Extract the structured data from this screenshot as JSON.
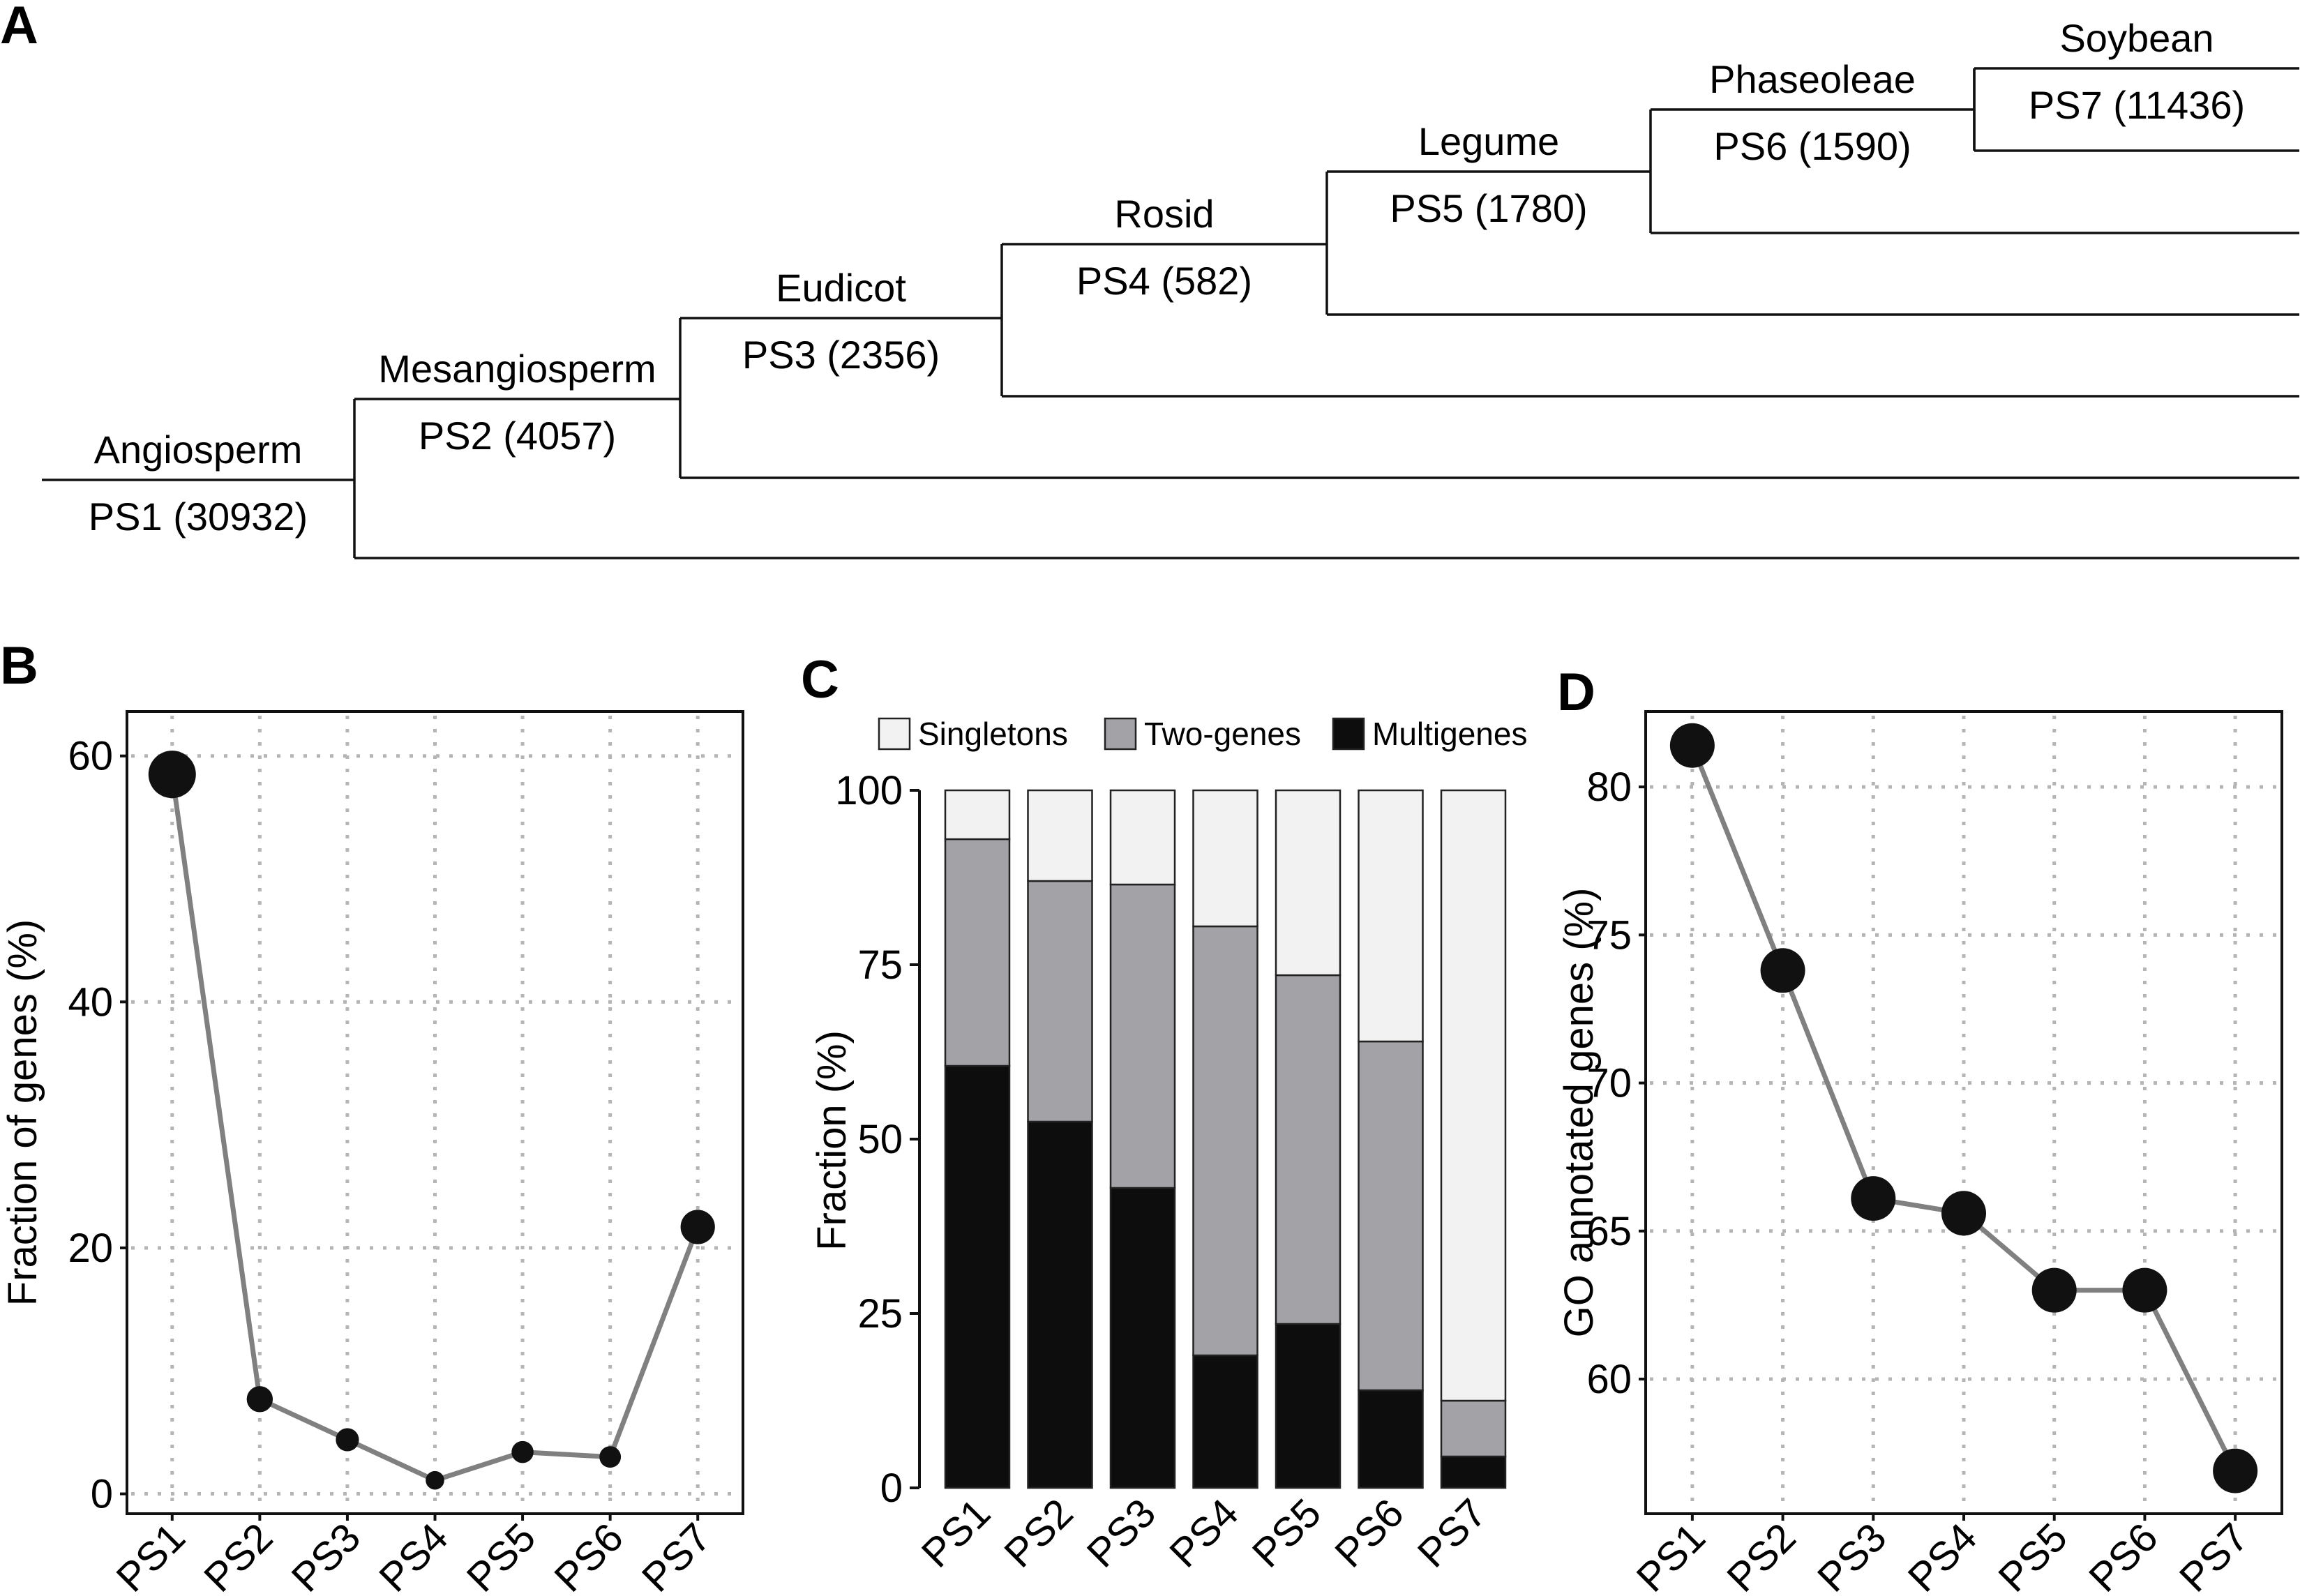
{
  "panel_labels": [
    "A",
    "B",
    "C",
    "D"
  ],
  "panel_a": {
    "nodes": [
      {
        "clade": "Angiosperm",
        "stratum": "PS1 (30932)"
      },
      {
        "clade": "Mesangiosperm",
        "stratum": "PS2 (4057)"
      },
      {
        "clade": "Eudicot",
        "stratum": "PS3 (2356)"
      },
      {
        "clade": "Rosid",
        "stratum": "PS4 (582)"
      },
      {
        "clade": "Legume",
        "stratum": "PS5 (1780)"
      },
      {
        "clade": "Phaseoleae",
        "stratum": "PS6 (1590)"
      },
      {
        "clade": "Soybean",
        "stratum": "PS7 (11436)"
      }
    ]
  },
  "chart_data": [
    {
      "type": "line",
      "panel": "B",
      "ylabel": "Fraction of genes (%)",
      "categories": [
        "PS1",
        "PS2",
        "PS3",
        "PS4",
        "PS5",
        "PS6",
        "PS7"
      ],
      "values": [
        58.5,
        7.7,
        4.4,
        1.1,
        3.4,
        3.0,
        21.7
      ],
      "marker_size": "proportional to value",
      "ylim": [
        -1.5,
        63.5
      ],
      "yticks": [
        "0",
        "20",
        "40",
        "60"
      ],
      "grid": true,
      "colors": {
        "line": "#808080",
        "marker": "#111111"
      }
    },
    {
      "type": "bar",
      "panel": "C",
      "stacked": true,
      "ylabel": "Fraction (%)",
      "categories": [
        "PS1",
        "PS2",
        "PS3",
        "PS4",
        "PS5",
        "PS6",
        "PS7"
      ],
      "series": [
        {
          "name": "Multigenes",
          "values": [
            60.5,
            52.5,
            43.0,
            19.0,
            23.5,
            14.0,
            4.5
          ],
          "color": "#0d0d0d"
        },
        {
          "name": "Two-genes",
          "values": [
            32.5,
            34.5,
            43.5,
            61.5,
            50.0,
            50.0,
            8.0
          ],
          "color": "#a3a2a7"
        },
        {
          "name": "Singletons",
          "values": [
            7.0,
            13.0,
            13.5,
            19.5,
            26.5,
            36.0,
            87.5
          ],
          "color": "#f2f2f2"
        }
      ],
      "legend_order": [
        "Singletons",
        "Two-genes",
        "Multigenes"
      ],
      "legend_position": "top",
      "ylim": [
        0,
        100
      ],
      "yticks": [
        "0",
        "25",
        "50",
        "75",
        "100"
      ],
      "grid": false
    },
    {
      "type": "line",
      "panel": "D",
      "ylabel": "GO annotated genes (%)",
      "categories": [
        "PS1",
        "PS2",
        "PS3",
        "PS4",
        "PS5",
        "PS6",
        "PS7"
      ],
      "values": [
        81.4,
        73.8,
        66.1,
        65.6,
        63.0,
        63.0,
        56.9
      ],
      "ylim": [
        55.5,
        82.5
      ],
      "yticks": [
        "60",
        "65",
        "70",
        "75",
        "80"
      ],
      "grid": true,
      "colors": {
        "line": "#808080",
        "marker": "#111111"
      }
    }
  ]
}
